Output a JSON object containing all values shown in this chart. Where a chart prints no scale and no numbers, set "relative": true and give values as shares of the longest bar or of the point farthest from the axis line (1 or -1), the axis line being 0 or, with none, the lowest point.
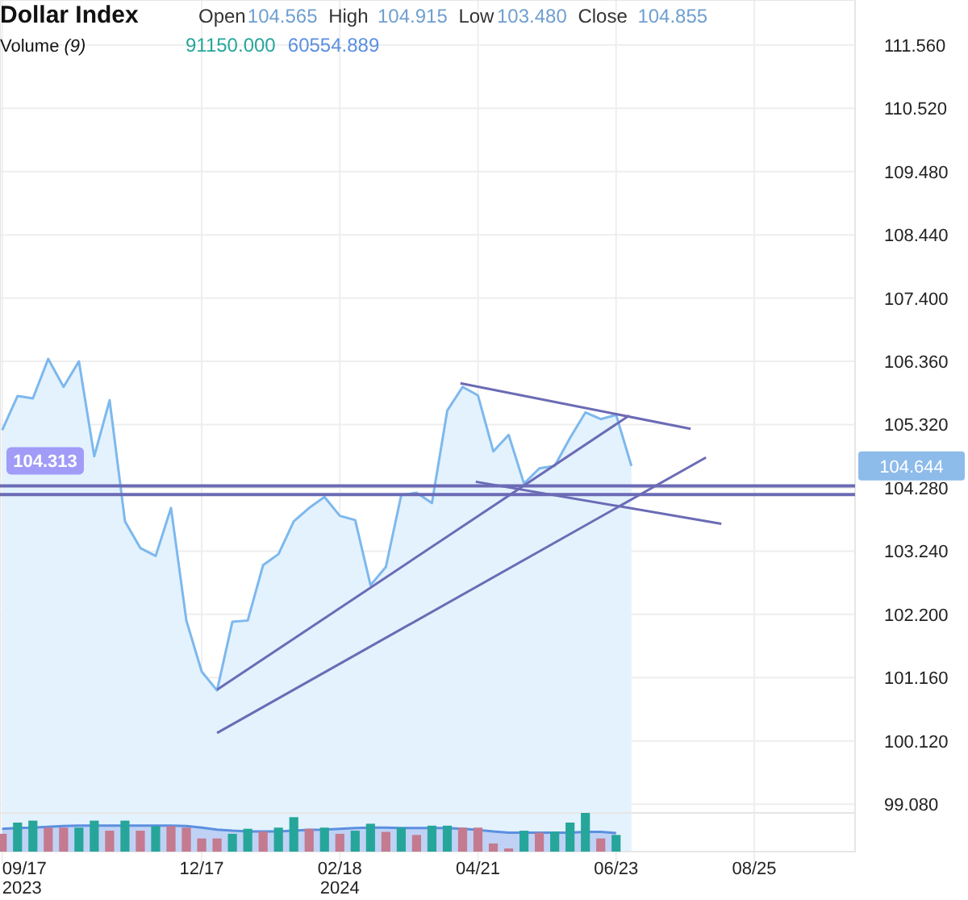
{
  "chart_data": [
    {
      "type": "area",
      "title": "Dollar Index",
      "annotations": [
        "Open",
        "104.565",
        "High",
        "104.915",
        "Low",
        "103.480",
        "Close",
        "104.855",
        "104.644"
      ],
      "xlim": [
        "2023-09-16",
        "2024-10-10"
      ],
      "xticks": [
        {
          "value": "2023-09-17",
          "label": null
        },
        {
          "value": "2023-12-17",
          "label": null
        },
        {
          "value": "2024-02-18",
          "label": null
        },
        {
          "value": "2024-04-21",
          "label": null
        },
        {
          "value": "2024-06-23",
          "label": null
        },
        {
          "value": "2024-08-25",
          "label": null
        }
      ],
      "ylim": [
        98.3,
        112.3
      ],
      "yticks": [
        {
          "value": 111.56,
          "label": "111.560"
        },
        {
          "value": 110.52,
          "label": "110.520"
        },
        {
          "value": 109.48,
          "label": "109.480"
        },
        {
          "value": 108.44,
          "label": "108.440"
        },
        {
          "value": 107.4,
          "label": "107.400"
        },
        {
          "value": 106.36,
          "label": "106.360"
        },
        {
          "value": 105.32,
          "label": "105.320"
        },
        {
          "value": 104.28,
          "label": "104.280"
        },
        {
          "value": 103.24,
          "label": "103.240"
        },
        {
          "value": 102.2,
          "label": "102.200"
        },
        {
          "value": 101.16,
          "label": "101.160"
        },
        {
          "value": 100.12,
          "label": "100.120"
        },
        {
          "value": 99.08,
          "label": "99.080"
        }
      ],
      "grid": true,
      "tick_labels": "y",
      "series": [
        {
          "color": "#7db8ee",
          "x": [
            "2023-09-17",
            "2023-09-24",
            "2023-10-01",
            "2023-10-08",
            "2023-10-15",
            "2023-10-22",
            "2023-10-29",
            "2023-11-05",
            "2023-11-12",
            "2023-11-19",
            "2023-11-26",
            "2023-12-03",
            "2023-12-10",
            "2023-12-17",
            "2023-12-24",
            "2023-12-31",
            "2024-01-07",
            "2024-01-14",
            "2024-01-21",
            "2024-01-28",
            "2024-02-04",
            "2024-02-11",
            "2024-02-18",
            "2024-02-25",
            "2024-03-03",
            "2024-03-10",
            "2024-03-17",
            "2024-03-24",
            "2024-03-31",
            "2024-04-07",
            "2024-04-14",
            "2024-04-21",
            "2024-04-28",
            "2024-05-05",
            "2024-05-12",
            "2024-05-19",
            "2024-05-26",
            "2024-06-02",
            "2024-06-09",
            "2024-06-16",
            "2024-06-23",
            "2024-06-30"
          ],
          "values": [
            105.23,
            105.79,
            105.75,
            106.4,
            105.94,
            106.36,
            104.8,
            105.72,
            103.73,
            103.29,
            103.16,
            103.95,
            102.1,
            101.26,
            100.95,
            102.08,
            102.1,
            103.01,
            103.19,
            103.73,
            103.95,
            104.13,
            103.82,
            103.75,
            102.68,
            102.98,
            104.16,
            104.2,
            104.03,
            105.55,
            105.94,
            105.8,
            104.88,
            105.15,
            104.35,
            104.6,
            104.64,
            105.1,
            105.52,
            105.41,
            105.48,
            104.64
          ]
        },
        {
          "type": "line",
          "color": "#6b6bb5",
          "x": [
            "2023-12-24",
            "2024-06-29"
          ],
          "values": [
            100.96,
            105.47
          ]
        },
        {
          "type": "line",
          "color": "#6b6bb5",
          "x": [
            "2023-12-24",
            "2024-08-03"
          ],
          "values": [
            100.25,
            104.78
          ]
        },
        {
          "type": "line",
          "color": "#6b6bb5",
          "x": [
            "2024-04-13",
            "2024-07-27"
          ],
          "values": [
            106.0,
            105.25
          ]
        },
        {
          "type": "line",
          "color": "#6b6bb5",
          "x": [
            "2024-04-20",
            "2024-08-10"
          ],
          "values": [
            104.38,
            103.69
          ]
        }
      ],
      "ref_lines": [
        {
          "axis": "y",
          "value": 104.313,
          "label": "104.313",
          "color": "#6b6bb5"
        },
        {
          "axis": "y",
          "value": 104.17,
          "color": "#6b6bb5"
        }
      ]
    },
    {
      "type": "bar",
      "relative": true,
      "title": "Volume (9)",
      "annotations": [
        "91150.000",
        "60554.889"
      ],
      "xlim": [
        "2023-09-16",
        "2024-10-10"
      ],
      "xticks": [
        {
          "value": "2023-09-17",
          "label": "09/17\n2023"
        },
        {
          "value": "2023-12-17",
          "label": "12/17"
        },
        {
          "value": "2024-02-18",
          "label": "02/18\n2024"
        },
        {
          "value": "2024-04-21",
          "label": "04/21"
        },
        {
          "value": "2024-06-23",
          "label": "06/23"
        },
        {
          "value": "2024-08-25",
          "label": "08/25"
        }
      ],
      "tick_labels": "x",
      "x": [
        "2023-09-17",
        "2023-09-24",
        "2023-10-01",
        "2023-10-08",
        "2023-10-15",
        "2023-10-22",
        "2023-10-29",
        "2023-11-05",
        "2023-11-12",
        "2023-11-19",
        "2023-11-26",
        "2023-12-03",
        "2023-12-10",
        "2023-12-17",
        "2023-12-24",
        "2023-12-31",
        "2024-01-07",
        "2024-01-14",
        "2024-01-21",
        "2024-01-28",
        "2024-02-04",
        "2024-02-11",
        "2024-02-18",
        "2024-02-25",
        "2024-03-03",
        "2024-03-10",
        "2024-03-17",
        "2024-03-24",
        "2024-03-31",
        "2024-04-07",
        "2024-04-14",
        "2024-04-21",
        "2024-04-28",
        "2024-05-05",
        "2024-05-12",
        "2024-05-19",
        "2024-05-26",
        "2024-06-02",
        "2024-06-09",
        "2024-06-16",
        "2024-06-23"
      ],
      "series": [
        {
          "values": [
            0.46,
            0.75,
            0.8,
            0.62,
            0.62,
            0.62,
            0.8,
            0.54,
            0.8,
            0.54,
            0.66,
            0.66,
            0.62,
            0.34,
            0.34,
            0.46,
            0.59,
            0.52,
            0.62,
            0.89,
            0.59,
            0.62,
            0.46,
            0.54,
            0.72,
            0.51,
            0.62,
            0.43,
            0.67,
            0.67,
            0.62,
            0.62,
            0.21,
            0.08,
            0.54,
            0.49,
            0.52,
            0.75,
            1,
            0.34,
            0.43
          ],
          "colors": [
            "#c47a8f",
            "#26a69a",
            "#26a69a",
            "#c47a8f",
            "#c47a8f",
            "#26a69a",
            "#26a69a",
            "#c47a8f",
            "#26a69a",
            "#c47a8f",
            "#26a69a",
            "#c47a8f",
            "#c47a8f",
            "#c47a8f",
            "#c47a8f",
            "#26a69a",
            "#26a69a",
            "#c47a8f",
            "#26a69a",
            "#26a69a",
            "#c47a8f",
            "#26a69a",
            "#c47a8f",
            "#26a69a",
            "#26a69a",
            "#c47a8f",
            "#26a69a",
            "#c47a8f",
            "#26a69a",
            "#26a69a",
            "#c47a8f",
            "#c47a8f",
            "#c47a8f",
            "#c47a8f",
            "#26a69a",
            "#c47a8f",
            "#26a69a",
            "#26a69a",
            "#26a69a",
            "#c47a8f",
            "#26a69a"
          ]
        },
        {
          "type": "area",
          "color": "#5b8fe0",
          "values": [
            0.59,
            0.61,
            0.62,
            0.64,
            0.66,
            0.67,
            0.67,
            0.67,
            0.67,
            0.67,
            0.67,
            0.67,
            0.66,
            0.62,
            0.57,
            0.54,
            0.52,
            0.52,
            0.52,
            0.54,
            0.56,
            0.57,
            0.59,
            0.61,
            0.62,
            0.62,
            0.61,
            0.61,
            0.61,
            0.61,
            0.59,
            0.56,
            0.52,
            0.49,
            0.49,
            0.49,
            0.49,
            0.49,
            0.51,
            0.51,
            0.48
          ]
        }
      ]
    }
  ]
}
